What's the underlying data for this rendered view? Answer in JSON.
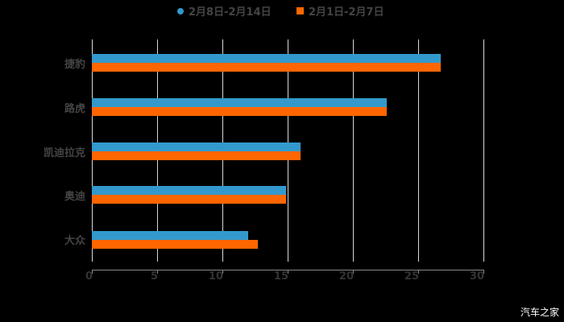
{
  "chart_data": {
    "type": "bar",
    "orientation": "horizontal",
    "title": "",
    "xlabel": "",
    "ylabel": "",
    "categories": [
      "捷豹",
      "路虎",
      "凯迪拉克",
      "奥迪",
      "大众"
    ],
    "series": [
      {
        "name": "2月8日-2月14日",
        "color": "#3399cc",
        "values": [
          26.7,
          22.6,
          16.0,
          14.9,
          12.0
        ]
      },
      {
        "name": "2月1日-2月7日",
        "color": "#ff6600",
        "values": [
          26.7,
          22.6,
          16.0,
          14.9,
          12.7
        ]
      }
    ],
    "xlim": [
      0,
      30
    ],
    "xticks": [
      "0",
      "5",
      "10",
      "15",
      "20",
      "25",
      "30"
    ],
    "grid": true,
    "legend_position": "top"
  },
  "legend": {
    "items": [
      {
        "label": "2月8日-2月14日",
        "color": "#3399cc",
        "shape": "circle"
      },
      {
        "label": "2月1日-2月7日",
        "color": "#ff6600",
        "shape": "square"
      }
    ]
  },
  "watermark": "汽车之家"
}
